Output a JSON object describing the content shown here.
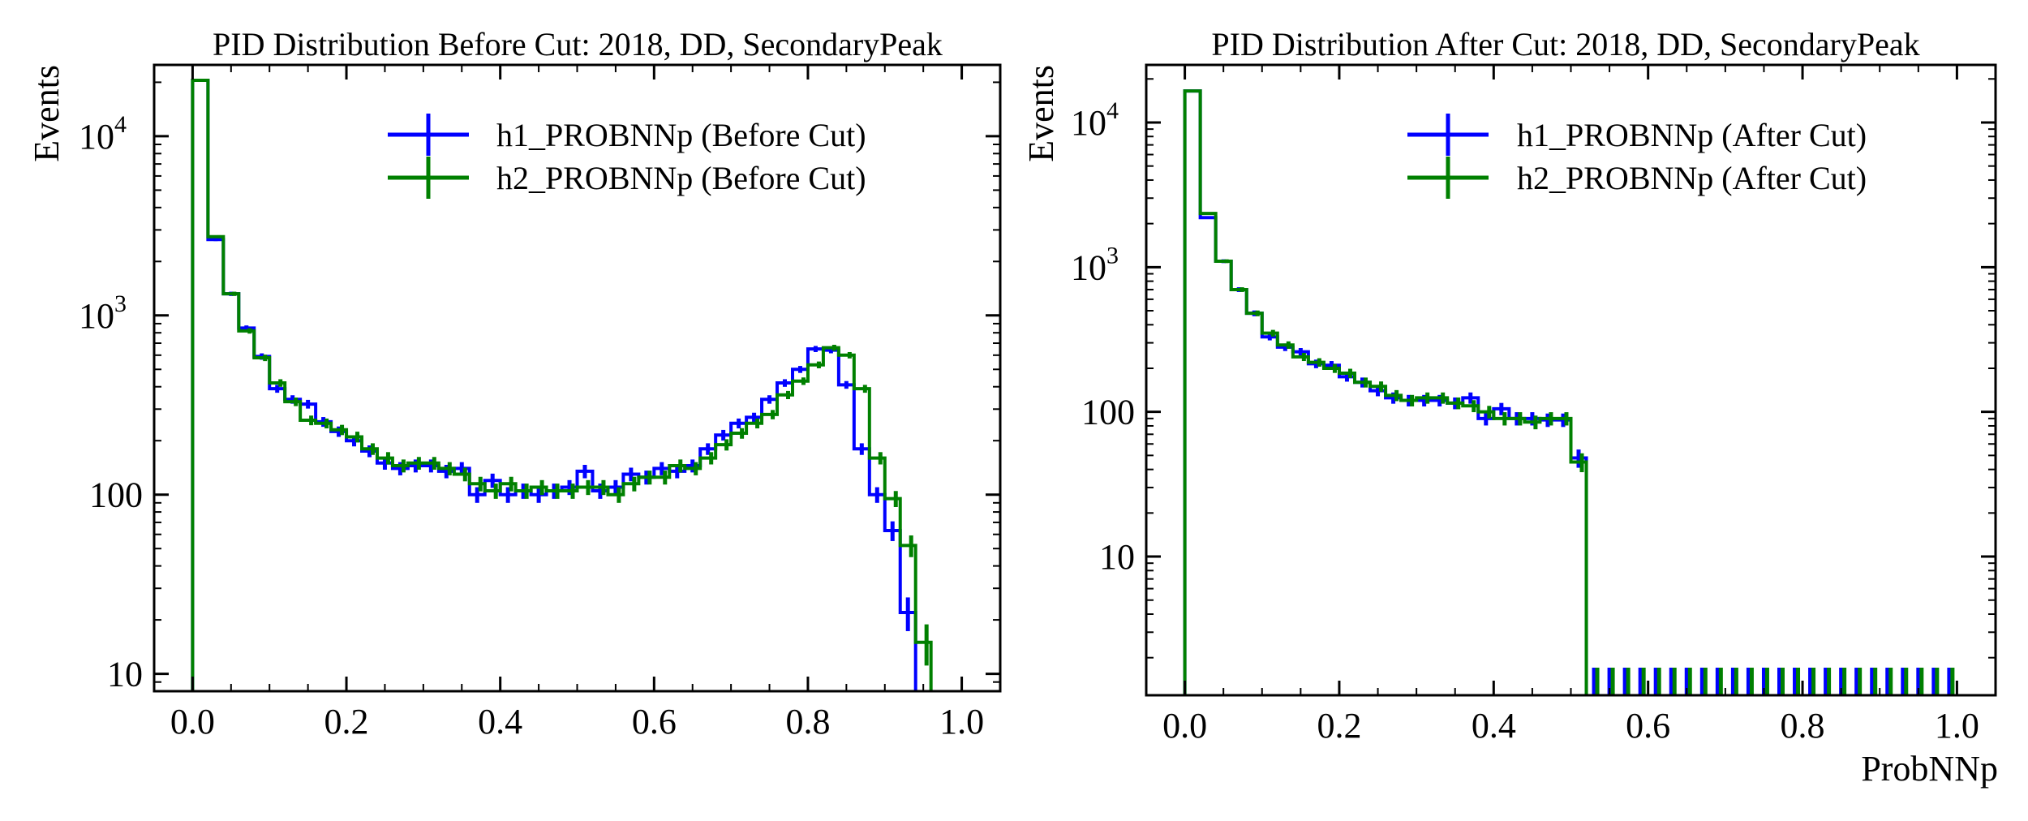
{
  "colors": {
    "h1": "#0000ff",
    "h2": "#008000"
  },
  "chart_data": [
    {
      "type": "step",
      "title": "PID Distribution Before Cut: 2018, DD, SecondaryPeak",
      "ylabel": "Events",
      "xlabel": "",
      "yscale": "log",
      "xlim": [
        -0.05,
        1.05
      ],
      "ylim": [
        8,
        25000
      ],
      "legend_position": "top-right",
      "xticks": [
        {
          "v": 0.0,
          "label": "0.0"
        },
        {
          "v": 0.2,
          "label": "0.2"
        },
        {
          "v": 0.4,
          "label": "0.4"
        },
        {
          "v": 0.6,
          "label": "0.6"
        },
        {
          "v": 0.8,
          "label": "0.8"
        },
        {
          "v": 1.0,
          "label": "1.0"
        }
      ],
      "yticks": [
        {
          "v": 10,
          "base": "10",
          "label": "10",
          "exp": ""
        },
        {
          "v": 100,
          "base": "100",
          "label": "100",
          "exp": ""
        },
        {
          "v": 1000,
          "base": "10",
          "label": "",
          "exp": "3"
        },
        {
          "v": 10000,
          "base": "10",
          "label": "",
          "exp": "4"
        }
      ],
      "bin_edges_start": 0.0,
      "bin_width": 0.02,
      "series": [
        {
          "name": "h1_PROBNNp (Before Cut)",
          "color_key": "h1",
          "values": [
            20500,
            2650,
            1320,
            850,
            590,
            390,
            340,
            320,
            255,
            225,
            200,
            175,
            150,
            140,
            145,
            145,
            135,
            140,
            100,
            120,
            100,
            105,
            100,
            105,
            110,
            135,
            105,
            110,
            130,
            125,
            140,
            135,
            145,
            180,
            215,
            250,
            270,
            340,
            420,
            500,
            650,
            640,
            410,
            180,
            100,
            63,
            22
          ]
        },
        {
          "name": "h2_PROBNNp (Before Cut)",
          "color_key": "h2",
          "values": [
            20500,
            2750,
            1320,
            820,
            580,
            420,
            330,
            260,
            250,
            230,
            210,
            180,
            160,
            145,
            150,
            150,
            140,
            130,
            115,
            105,
            115,
            105,
            110,
            105,
            105,
            110,
            110,
            100,
            115,
            125,
            125,
            145,
            140,
            160,
            190,
            220,
            250,
            280,
            360,
            430,
            530,
            660,
            600,
            390,
            160,
            95,
            52,
            15
          ]
        }
      ]
    },
    {
      "type": "step",
      "title": "PID Distribution After Cut: 2018, DD, SecondaryPeak",
      "ylabel": "Events",
      "xlabel": "ProbNNp",
      "yscale": "log",
      "xlim": [
        -0.05,
        1.05
      ],
      "ylim": [
        1.1,
        25000
      ],
      "legend_position": "top-right",
      "xticks": [
        {
          "v": 0.0,
          "label": "0.0"
        },
        {
          "v": 0.2,
          "label": "0.2"
        },
        {
          "v": 0.4,
          "label": "0.4"
        },
        {
          "v": 0.6,
          "label": "0.6"
        },
        {
          "v": 0.8,
          "label": "0.8"
        },
        {
          "v": 1.0,
          "label": "1.0"
        }
      ],
      "yticks": [
        {
          "v": 10,
          "base": "10",
          "label": "10",
          "exp": ""
        },
        {
          "v": 100,
          "base": "100",
          "label": "100",
          "exp": ""
        },
        {
          "v": 1000,
          "base": "10",
          "label": "",
          "exp": "3"
        },
        {
          "v": 10000,
          "base": "10",
          "label": "",
          "exp": "4"
        }
      ],
      "bin_edges_start": 0.0,
      "bin_width": 0.02,
      "series": [
        {
          "name": "h1_PROBNNp (After Cut)",
          "color_key": "h1",
          "values": [
            16500,
            2200,
            1100,
            700,
            480,
            330,
            280,
            260,
            215,
            210,
            175,
            160,
            140,
            125,
            120,
            120,
            120,
            115,
            125,
            90,
            105,
            90,
            90,
            88,
            88,
            48
          ],
          "empty_bins_from": 26,
          "empty_bins_to": 50
        },
        {
          "name": "h2_PROBNNp (After Cut)",
          "color_key": "h2",
          "values": [
            16500,
            2350,
            1100,
            700,
            480,
            350,
            290,
            240,
            220,
            200,
            185,
            160,
            150,
            130,
            120,
            125,
            125,
            115,
            110,
            100,
            90,
            90,
            85,
            90,
            90,
            45
          ],
          "empty_bins_from": 26,
          "empty_bins_to": 50
        }
      ]
    }
  ]
}
